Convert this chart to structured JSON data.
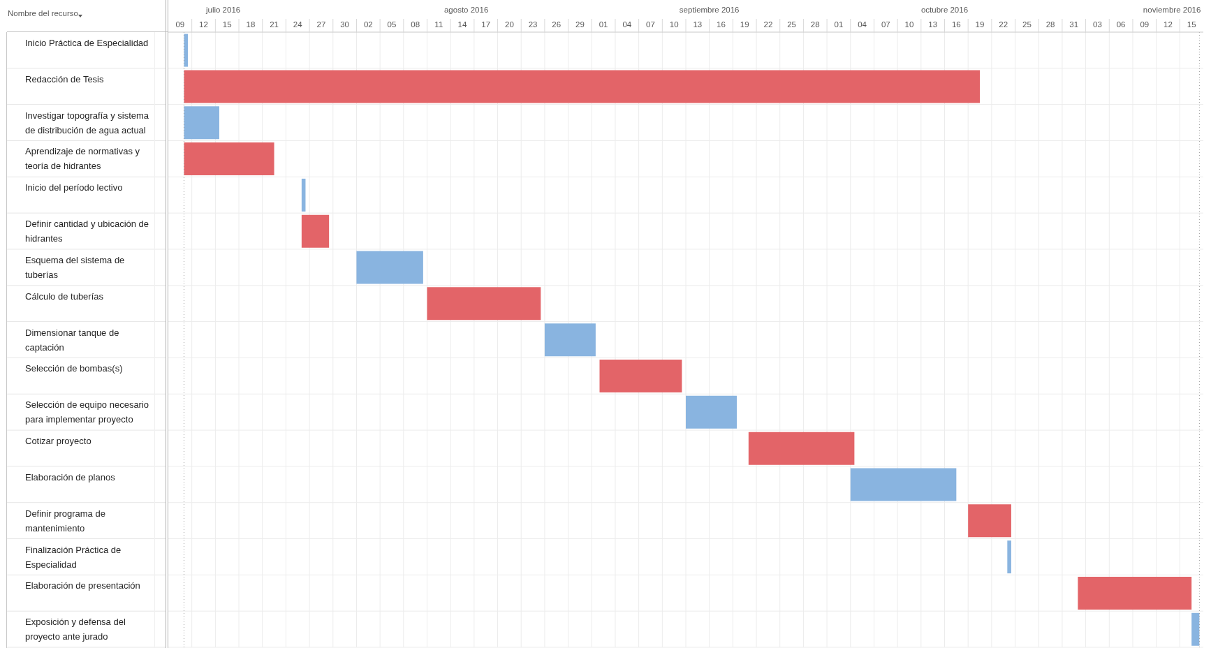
{
  "chart_data": {
    "type": "bar",
    "orientation": "horizontal",
    "ylabel": "Nombre del recurso",
    "categories": [
      "Inicio Práctica de Especialidad",
      "Redacción de Tesis",
      "Investigar topografía y sistema de distribución de agua actual",
      "Aprendizaje de normativas y teoría de hidrantes",
      "Inicio del período lectivo",
      "Definir cantidad y ubicación de hidrantes",
      "Esquema del sistema de tuberías",
      "Cálculo de tuberías",
      "Dimensionar tanque de captación",
      "Selección de bombas(s)",
      "Selección de equipo necesario para implementar proyecto",
      "Cotizar proyecto",
      "Elaboración de planos",
      "Definir programa de mantenimiento",
      "Finalización Práctica de Especialidad",
      "Elaboración de presentación",
      "Exposición y defensa del proyecto ante jurado"
    ],
    "base": [
      16993,
      16993,
      16993,
      16993,
      17008,
      17008,
      17015,
      17024,
      17039,
      17046,
      17057,
      17065,
      17078,
      17093,
      17098,
      17107,
      17121.5
    ],
    "values": [
      0.5,
      101.5,
      4.5,
      11.5,
      0.5,
      3.5,
      8.5,
      14.5,
      6.5,
      10.5,
      6.5,
      13.5,
      13.5,
      5.5,
      0.5,
      14.5,
      1
    ],
    "colors": [
      "#89b4e0",
      "#e36468",
      "#89b4e0",
      "#e36468",
      "#89b4e0",
      "#e36468",
      "#89b4e0",
      "#e36468",
      "#89b4e0",
      "#e36468",
      "#89b4e0",
      "#e36468",
      "#89b4e0",
      "#e36468",
      "#89b4e0",
      "#e36468",
      "#89b4e0"
    ],
    "xlim": [
      "2016-07-09",
      "2016-11-18"
    ],
    "xticks": [
      {
        "value": "2016-07-10T12:00",
        "label": "09"
      },
      {
        "value": "2016-07-12",
        "label": null
      },
      {
        "value": "2016-07-13T12:00",
        "label": "12"
      },
      {
        "value": "2016-07-15",
        "label": null
      },
      {
        "value": "2016-07-16T12:00",
        "label": "15"
      },
      {
        "value": "2016-07-18",
        "label": null
      },
      {
        "value": "2016-07-19T12:00",
        "label": "18"
      },
      {
        "value": "2016-07-21",
        "label": null
      },
      {
        "value": "2016-07-22T12:00",
        "label": "21"
      },
      {
        "value": "2016-07-24",
        "label": null
      },
      {
        "value": "2016-07-25T12:00",
        "label": "24"
      },
      {
        "value": "2016-07-27",
        "label": null
      },
      {
        "value": "2016-07-28T12:00",
        "label": "27"
      },
      {
        "value": "2016-07-30",
        "label": null
      },
      {
        "value": "2016-07-31T12:00",
        "label": "30"
      },
      {
        "value": "2016-08-02",
        "label": null
      },
      {
        "value": "2016-08-03T12:00",
        "label": "02"
      },
      {
        "value": "2016-08-05",
        "label": null
      },
      {
        "value": "2016-08-06T12:00",
        "label": "05"
      },
      {
        "value": "2016-08-08",
        "label": null
      },
      {
        "value": "2016-08-09T12:00",
        "label": "08"
      },
      {
        "value": "2016-08-11",
        "label": null
      },
      {
        "value": "2016-08-12T12:00",
        "label": "11"
      },
      {
        "value": "2016-08-14",
        "label": null
      },
      {
        "value": "2016-08-15T12:00",
        "label": "14"
      },
      {
        "value": "2016-08-17",
        "label": null
      },
      {
        "value": "2016-08-18T12:00",
        "label": "17"
      },
      {
        "value": "2016-08-20",
        "label": null
      },
      {
        "value": "2016-08-21T12:00",
        "label": "20"
      },
      {
        "value": "2016-08-23",
        "label": null
      },
      {
        "value": "2016-08-24T12:00",
        "label": "23"
      },
      {
        "value": "2016-08-26",
        "label": null
      },
      {
        "value": "2016-08-27T12:00",
        "label": "26"
      },
      {
        "value": "2016-08-29",
        "label": null
      },
      {
        "value": "2016-08-30T12:00",
        "label": "29"
      },
      {
        "value": "2016-09-01",
        "label": null
      },
      {
        "value": "2016-09-02T12:00",
        "label": "01"
      },
      {
        "value": "2016-09-04",
        "label": null
      },
      {
        "value": "2016-09-05T12:00",
        "label": "04"
      },
      {
        "value": "2016-09-07",
        "label": null
      },
      {
        "value": "2016-09-08T12:00",
        "label": "07"
      },
      {
        "value": "2016-09-10",
        "label": null
      },
      {
        "value": "2016-09-11T12:00",
        "label": "10"
      },
      {
        "value": "2016-09-13",
        "label": null
      },
      {
        "value": "2016-09-14T12:00",
        "label": "13"
      },
      {
        "value": "2016-09-16",
        "label": null
      },
      {
        "value": "2016-09-17T12:00",
        "label": "16"
      },
      {
        "value": "2016-09-19",
        "label": null
      },
      {
        "value": "2016-09-20T12:00",
        "label": "19"
      },
      {
        "value": "2016-09-22",
        "label": null
      },
      {
        "value": "2016-09-23T12:00",
        "label": "22"
      },
      {
        "value": "2016-09-25",
        "label": null
      },
      {
        "value": "2016-09-26T12:00",
        "label": "25"
      },
      {
        "value": "2016-09-28",
        "label": null
      },
      {
        "value": "2016-09-29T12:00",
        "label": "28"
      },
      {
        "value": "2016-10-01",
        "label": null
      },
      {
        "value": "2016-10-02T12:00",
        "label": "01"
      },
      {
        "value": "2016-10-04",
        "label": null
      },
      {
        "value": "2016-10-05T12:00",
        "label": "04"
      },
      {
        "value": "2016-10-07",
        "label": null
      },
      {
        "value": "2016-10-08T12:00",
        "label": "07"
      },
      {
        "value": "2016-10-10",
        "label": null
      },
      {
        "value": "2016-10-11T12:00",
        "label": "10"
      },
      {
        "value": "2016-10-13",
        "label": null
      },
      {
        "value": "2016-10-14T12:00",
        "label": "13"
      },
      {
        "value": "2016-10-16",
        "label": null
      },
      {
        "value": "2016-10-17T12:00",
        "label": "16"
      },
      {
        "value": "2016-10-19",
        "label": null
      },
      {
        "value": "2016-10-20T12:00",
        "label": "19"
      },
      {
        "value": "2016-10-22",
        "label": null
      },
      {
        "value": "2016-10-23T12:00",
        "label": "22"
      },
      {
        "value": "2016-10-25",
        "label": null
      },
      {
        "value": "2016-10-26T12:00",
        "label": "25"
      },
      {
        "value": "2016-10-28",
        "label": null
      },
      {
        "value": "2016-10-29T12:00",
        "label": "28"
      },
      {
        "value": "2016-10-31",
        "label": null
      },
      {
        "value": "2016-11-01T12:00",
        "label": "31"
      },
      {
        "value": "2016-11-03",
        "label": null
      },
      {
        "value": "2016-11-04T12:00",
        "label": "03"
      },
      {
        "value": "2016-11-06",
        "label": null
      },
      {
        "value": "2016-11-07T12:00",
        "label": "06"
      },
      {
        "value": "2016-11-09",
        "label": null
      },
      {
        "value": "2016-11-10T12:00",
        "label": "09"
      },
      {
        "value": "2016-11-12",
        "label": null
      },
      {
        "value": "2016-11-13T12:00",
        "label": "12"
      },
      {
        "value": "2016-11-15",
        "label": null
      },
      {
        "value": "2016-11-16T12:00",
        "label": "15"
      }
    ],
    "x2lim": [
      "2016-07-09",
      "2016-11-18"
    ],
    "x2ticks": [
      {
        "value": "2016-07-16",
        "label": "julio 2016"
      },
      {
        "value": "2016-08-16",
        "label": "agosto 2016"
      },
      {
        "value": "2016-09-16",
        "label": "septiembre 2016"
      },
      {
        "value": "2016-10-16",
        "label": "octubre 2016"
      },
      {
        "value": "2016-11-14",
        "label": "noviembre 2016"
      }
    ],
    "grid": true,
    "ref_lines": [
      {
        "axis": "x",
        "value": "2016-07-11",
        "line_style": "dotted",
        "color": "#9a9a9a"
      },
      {
        "axis": "x",
        "value": "2016-11-17T12:00",
        "line_style": "dotted",
        "color": "#9a9a9a"
      }
    ]
  }
}
